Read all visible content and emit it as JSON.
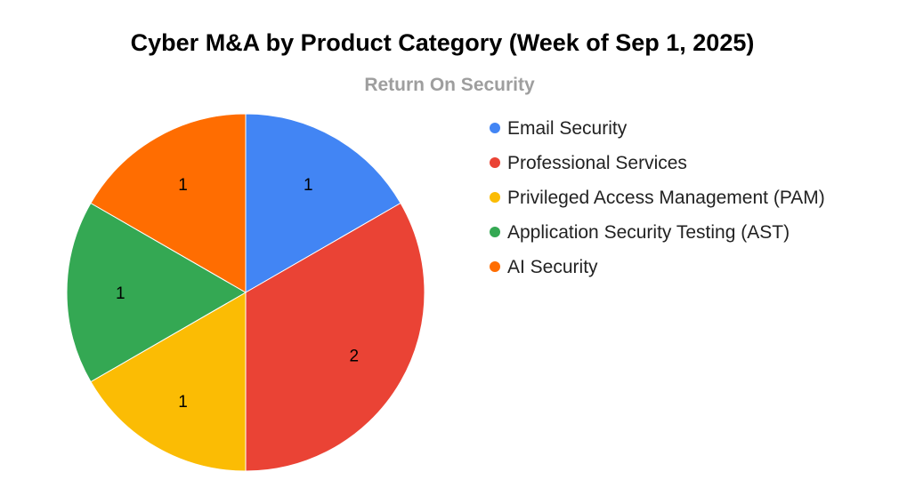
{
  "chart_data": {
    "type": "pie",
    "title": "Cyber M&A by Product Category (Week of Sep 1, 2025)",
    "subtitle": "Return On Security",
    "categories": [
      "Email Security",
      "Professional Services",
      "Privileged Access Management (PAM)",
      "Application Security Testing (AST)",
      "AI Security"
    ],
    "values": [
      1,
      2,
      1,
      1,
      1
    ],
    "colors": [
      "#4285f4",
      "#ea4335",
      "#fbbc04",
      "#34a853",
      "#ff6d01"
    ],
    "legend_position": "right",
    "start_angle": "12 o'clock",
    "direction": "clockwise",
    "data_labels": "value"
  }
}
